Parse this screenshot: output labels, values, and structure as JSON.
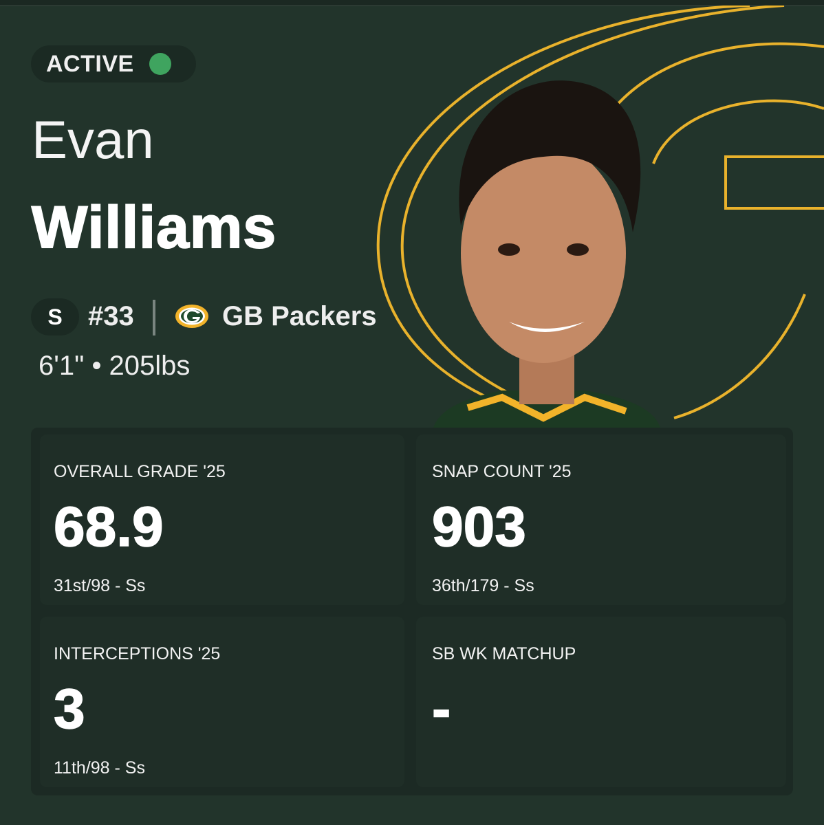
{
  "profile": {
    "status": "ACTIVE",
    "first_name": "Evan",
    "last_name": "Williams",
    "position": "S",
    "number": "#33",
    "team": "GB Packers",
    "measurements": "6'1\" • 205lbs"
  },
  "stats": [
    {
      "label": "OVERALL GRADE '25",
      "value": 68.9,
      "rank": "31st/98 - Ss"
    },
    {
      "label": "SNAP COUNT '25",
      "value": 903,
      "rank": "36th/179 - Ss"
    },
    {
      "label": "INTERCEPTIONS '25",
      "value": 3,
      "rank": "11th/98 - Ss"
    },
    {
      "label": "SB WK MATCHUP",
      "value": "-"
    }
  ]
}
